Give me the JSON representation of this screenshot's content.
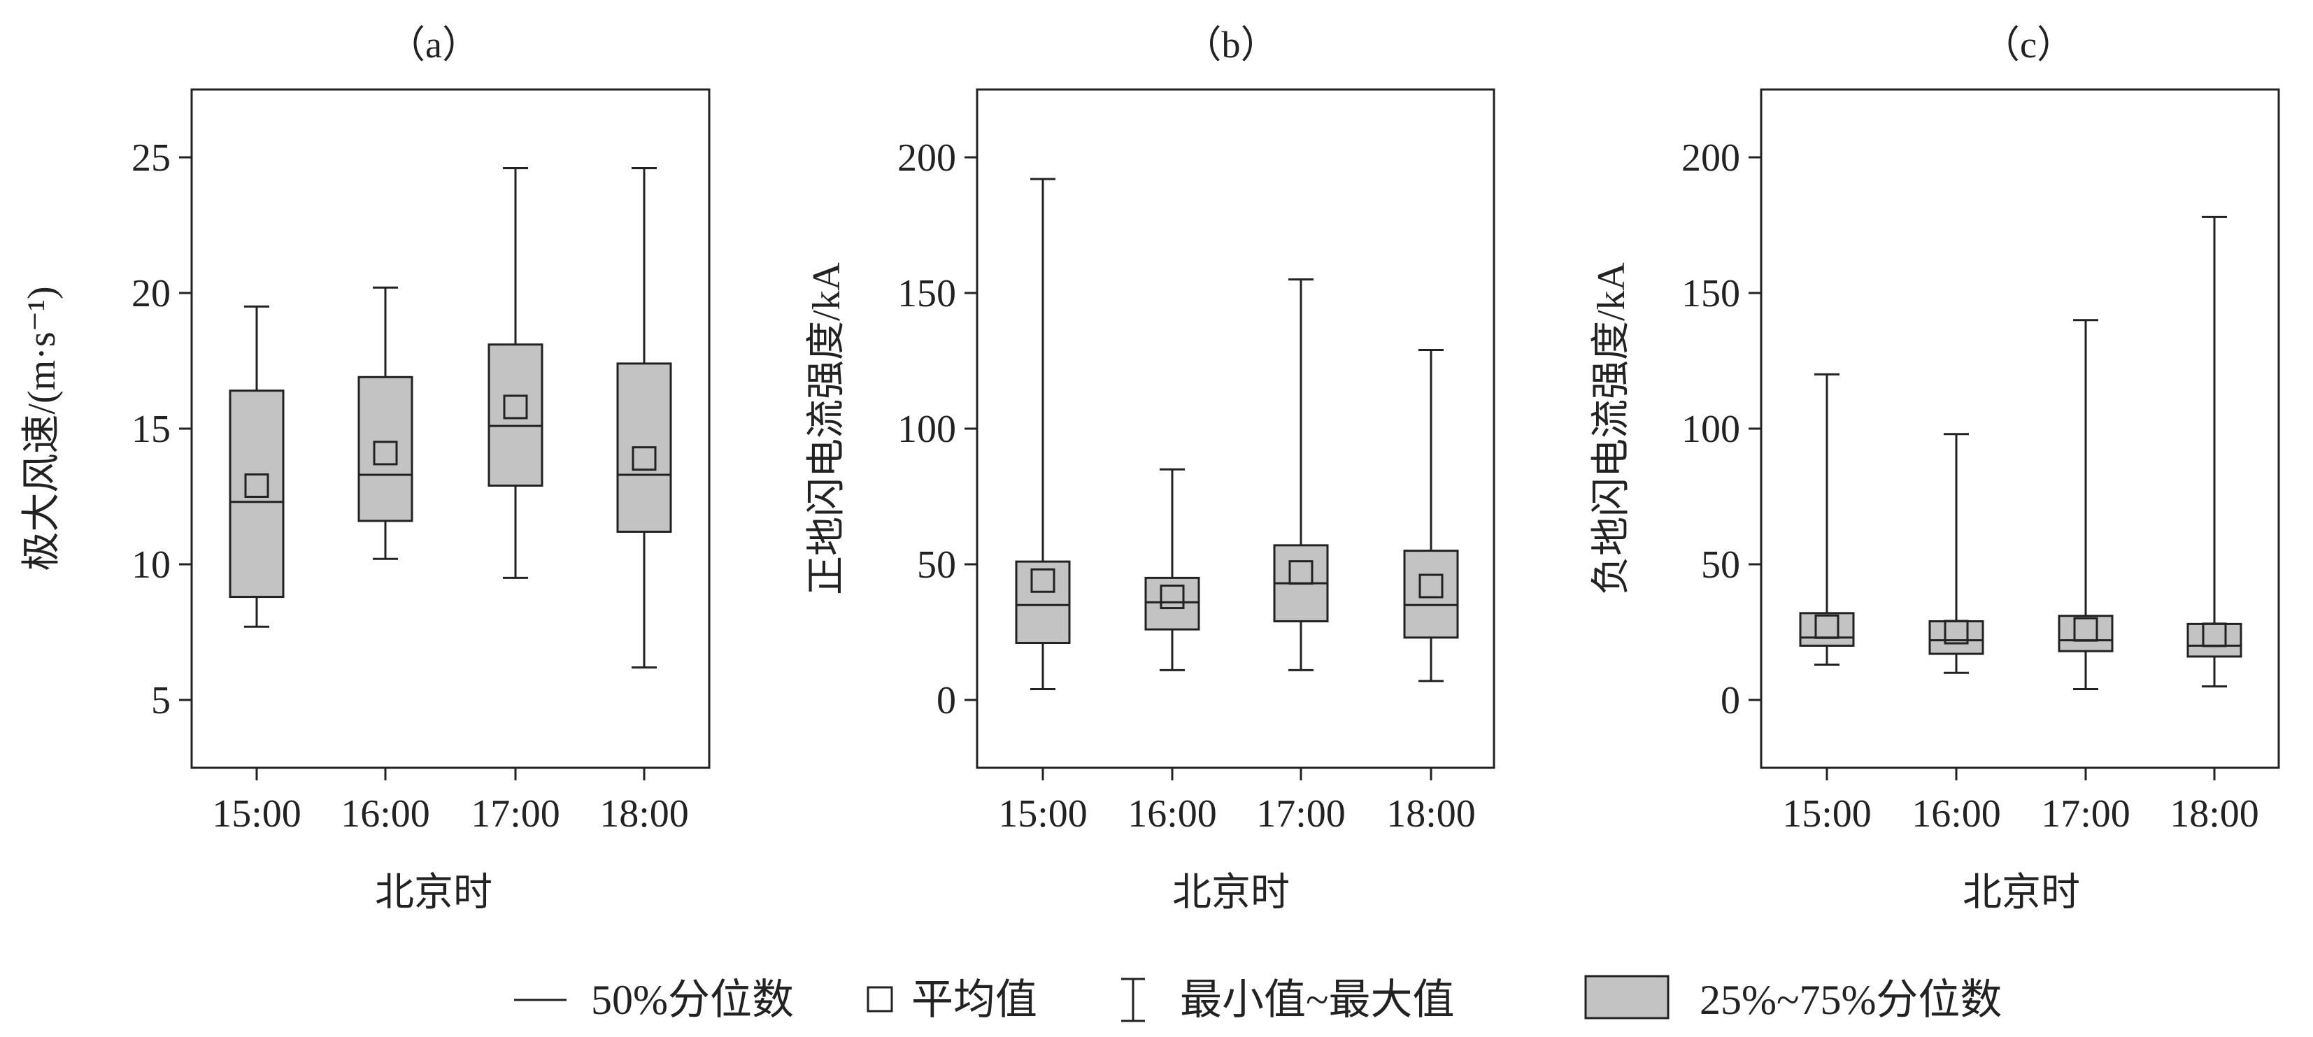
{
  "colors": {
    "box_fill": "#c3c3c3",
    "stroke": "#222222",
    "background": "#ffffff"
  },
  "legend": {
    "median": "50%分位数",
    "mean": "平均值",
    "range": "最小值~最大值",
    "iqr": "25%~75%分位数"
  },
  "chart_data": [
    {
      "type": "box",
      "title": "（a）",
      "xlabel": "北京时",
      "ylabel": "极大风速/(m·s⁻¹)",
      "categories": [
        "15:00",
        "16:00",
        "17:00",
        "18:00"
      ],
      "yticks": [
        "5",
        "10",
        "15",
        "20",
        "25"
      ],
      "ylim": [
        2.5,
        27.5
      ],
      "boxes": [
        {
          "min": 7.7,
          "q1": 8.8,
          "median": 12.3,
          "mean": 12.9,
          "q3": 16.4,
          "max": 19.5
        },
        {
          "min": 10.2,
          "q1": 11.6,
          "median": 13.3,
          "mean": 14.1,
          "q3": 16.9,
          "max": 20.2
        },
        {
          "min": 9.5,
          "q1": 12.9,
          "median": 15.1,
          "mean": 15.8,
          "q3": 18.1,
          "max": 24.6
        },
        {
          "min": 6.2,
          "q1": 11.2,
          "median": 13.3,
          "mean": 13.9,
          "q3": 17.4,
          "max": 24.6
        }
      ]
    },
    {
      "type": "box",
      "title": "（b）",
      "xlabel": "北京时",
      "ylabel": "正地闪电流强度/kA",
      "categories": [
        "15:00",
        "16:00",
        "17:00",
        "18:00"
      ],
      "yticks": [
        "0",
        "50",
        "100",
        "150",
        "200"
      ],
      "ylim": [
        -25,
        225
      ],
      "boxes": [
        {
          "min": 4,
          "q1": 21,
          "median": 35,
          "mean": 44,
          "q3": 51,
          "max": 192
        },
        {
          "min": 11,
          "q1": 26,
          "median": 36,
          "mean": 38,
          "q3": 45,
          "max": 85
        },
        {
          "min": 11,
          "q1": 29,
          "median": 43,
          "mean": 47,
          "q3": 57,
          "max": 155
        },
        {
          "min": 7,
          "q1": 23,
          "median": 35,
          "mean": 42,
          "q3": 55,
          "max": 129
        }
      ]
    },
    {
      "type": "box",
      "title": "（c）",
      "xlabel": "北京时",
      "ylabel": "负地闪电流强度/kA",
      "categories": [
        "15:00",
        "16:00",
        "17:00",
        "18:00"
      ],
      "yticks": [
        "0",
        "50",
        "100",
        "150",
        "200"
      ],
      "ylim": [
        -25,
        225
      ],
      "boxes": [
        {
          "min": 13,
          "q1": 20,
          "median": 23,
          "mean": 27,
          "q3": 32,
          "max": 120
        },
        {
          "min": 10,
          "q1": 17,
          "median": 22,
          "mean": 25,
          "q3": 29,
          "max": 98
        },
        {
          "min": 4,
          "q1": 18,
          "median": 22,
          "mean": 26,
          "q3": 31,
          "max": 140
        },
        {
          "min": 5,
          "q1": 16,
          "median": 20,
          "mean": 24,
          "q3": 28,
          "max": 178
        }
      ]
    }
  ]
}
